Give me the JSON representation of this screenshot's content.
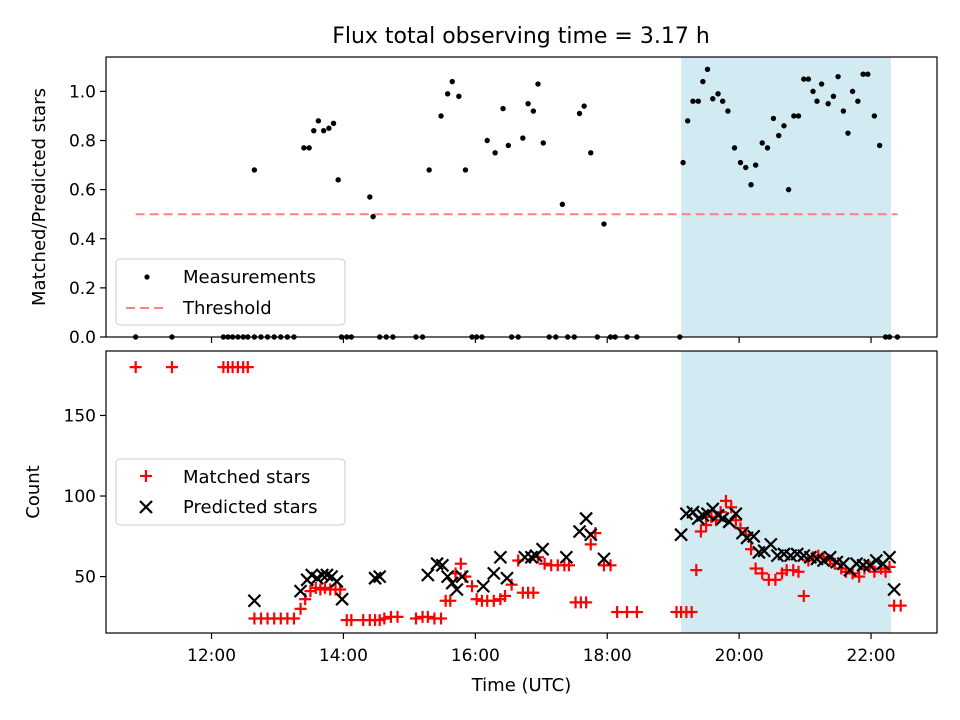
{
  "title": "Flux total observing time = 3.17 h",
  "chart_data": [
    {
      "type": "scatter",
      "ylabel": "Matched/Predicted stars",
      "xlim": [
        10.4,
        23.0
      ],
      "ylim": [
        0,
        1.14
      ],
      "yticks": [
        0.0,
        0.2,
        0.4,
        0.6,
        0.8,
        1.0
      ],
      "ytick_labels": [
        "0.0",
        "0.2",
        "0.4",
        "0.6",
        "0.8",
        "1.0"
      ],
      "shaded_span": [
        19.12,
        22.3
      ],
      "shade_color": "#add8e6",
      "threshold": {
        "value": 0.5,
        "x_range": [
          10.85,
          22.4
        ],
        "color": "#ff8080"
      },
      "legend": {
        "position": "lower-left",
        "items": [
          {
            "label": "Measurements"
          },
          {
            "label": "Threshold"
          }
        ]
      },
      "series": [
        {
          "name": "Measurements",
          "marker": "dot",
          "color": "#000000",
          "x": [
            10.85,
            11.4,
            12.18,
            12.25,
            12.32,
            12.4,
            12.48,
            12.55,
            12.65,
            12.75,
            12.85,
            12.95,
            13.05,
            13.15,
            13.25,
            12.65,
            13.4,
            13.48,
            13.55,
            13.62,
            13.7,
            13.78,
            13.85,
            13.92,
            13.97,
            14.05,
            14.12,
            14.4,
            14.45,
            14.55,
            14.65,
            14.75,
            15.1,
            15.2,
            15.3,
            15.48,
            15.58,
            15.65,
            15.75,
            15.85,
            15.95,
            16.02,
            16.1,
            16.18,
            16.3,
            16.42,
            16.5,
            16.55,
            16.65,
            16.72,
            16.8,
            16.88,
            16.95,
            17.03,
            17.12,
            17.22,
            17.32,
            17.4,
            17.5,
            17.58,
            17.65,
            17.75,
            17.85,
            17.95,
            18.05,
            18.12,
            18.3,
            18.45,
            19.1,
            19.15,
            19.22,
            19.3,
            19.38,
            19.45,
            19.52,
            19.6,
            19.68,
            19.75,
            19.83,
            19.93,
            20.02,
            20.1,
            20.18,
            20.25,
            20.35,
            20.43,
            20.52,
            20.6,
            20.68,
            20.75,
            20.83,
            20.9,
            20.98,
            21.05,
            21.12,
            21.18,
            21.25,
            21.35,
            21.43,
            21.5,
            21.58,
            21.65,
            21.72,
            21.8,
            21.88,
            21.95,
            22.05,
            22.13,
            22.22,
            22.28,
            22.4
          ],
          "y": [
            0.0,
            0.0,
            0.0,
            0.0,
            0.0,
            0.0,
            0.0,
            0.0,
            0.0,
            0.0,
            0.0,
            0.0,
            0.0,
            0.0,
            0.0,
            0.68,
            0.77,
            0.77,
            0.84,
            0.88,
            0.84,
            0.85,
            0.87,
            0.64,
            0.0,
            0.0,
            0.0,
            0.57,
            0.49,
            0.0,
            0.0,
            0.0,
            0.0,
            0.0,
            0.68,
            0.9,
            0.99,
            1.04,
            0.98,
            0.68,
            0.0,
            0.0,
            0.0,
            0.8,
            0.75,
            0.93,
            0.78,
            0.0,
            0.0,
            0.81,
            0.95,
            0.92,
            1.03,
            0.79,
            0.0,
            0.0,
            0.54,
            0.0,
            0.0,
            0.91,
            0.94,
            0.75,
            0.0,
            0.46,
            0.0,
            0.0,
            0.0,
            0.0,
            0.0,
            0.71,
            0.88,
            0.96,
            0.96,
            1.04,
            1.09,
            0.97,
            0.99,
            0.96,
            0.92,
            0.77,
            0.71,
            0.69,
            0.62,
            0.7,
            0.79,
            0.77,
            0.89,
            0.82,
            0.86,
            0.6,
            0.9,
            0.9,
            1.05,
            1.05,
            1.0,
            0.96,
            1.03,
            0.95,
            0.98,
            1.06,
            0.92,
            0.83,
            1.0,
            0.96,
            1.07,
            1.07,
            0.9,
            0.78,
            0.0,
            0.0,
            0.0
          ]
        }
      ]
    },
    {
      "type": "scatter",
      "ylabel": "Count",
      "xlabel": "Time (UTC)",
      "xlim": [
        10.4,
        23.0
      ],
      "ylim": [
        15,
        190
      ],
      "yticks": [
        50,
        100,
        150
      ],
      "ytick_labels": [
        "50",
        "100",
        "150"
      ],
      "xticks": [
        12,
        14,
        16,
        18,
        20,
        22
      ],
      "xtick_labels": [
        "12:00",
        "14:00",
        "16:00",
        "18:00",
        "20:00",
        "22:00"
      ],
      "shaded_span": [
        19.12,
        22.3
      ],
      "shade_color": "#add8e6",
      "legend": {
        "position": "center-left",
        "items": [
          {
            "label": "Matched stars"
          },
          {
            "label": "Predicted stars"
          }
        ]
      },
      "series": [
        {
          "name": "Matched stars",
          "marker": "plus",
          "color": "#ff0000",
          "x": [
            10.85,
            11.4,
            12.18,
            12.25,
            12.32,
            12.4,
            12.48,
            12.55,
            12.65,
            12.75,
            12.85,
            12.95,
            13.05,
            13.15,
            13.25,
            13.35,
            13.42,
            13.5,
            13.58,
            13.65,
            13.72,
            13.8,
            13.88,
            13.95,
            14.05,
            14.12,
            14.3,
            14.4,
            14.48,
            14.55,
            14.62,
            14.72,
            14.82,
            15.1,
            15.2,
            15.28,
            15.38,
            15.48,
            15.55,
            15.62,
            15.7,
            15.78,
            15.85,
            15.95,
            16.02,
            16.1,
            16.18,
            16.28,
            16.38,
            16.45,
            16.55,
            16.65,
            16.72,
            16.8,
            16.88,
            16.95,
            17.05,
            17.15,
            17.25,
            17.35,
            17.42,
            17.52,
            17.6,
            17.68,
            17.75,
            17.82,
            17.95,
            18.05,
            18.15,
            18.3,
            18.45,
            19.05,
            19.12,
            19.2,
            19.28,
            19.35,
            19.42,
            19.5,
            19.58,
            19.65,
            19.72,
            19.8,
            19.88,
            19.95,
            20.02,
            20.1,
            20.18,
            20.25,
            20.35,
            20.45,
            20.55,
            20.65,
            20.72,
            20.82,
            20.9,
            20.98,
            21.05,
            21.12,
            21.2,
            21.28,
            21.38,
            21.45,
            21.55,
            21.62,
            21.72,
            21.82,
            21.9,
            21.98,
            22.05,
            22.15,
            22.22,
            22.28,
            22.35,
            22.45
          ],
          "y": [
            180,
            180,
            180,
            180,
            180,
            180,
            180,
            180,
            24,
            24,
            24,
            24,
            24,
            24,
            24,
            30,
            36,
            41,
            43,
            42,
            43,
            42,
            42,
            42,
            23,
            23,
            23,
            23,
            23,
            23,
            24,
            25,
            25,
            24,
            25,
            25,
            24,
            24,
            35,
            35,
            52,
            58,
            50,
            44,
            36,
            35,
            35,
            35,
            36,
            38,
            45,
            60,
            40,
            40,
            40,
            62,
            58,
            57,
            57,
            57,
            57,
            34,
            34,
            34,
            70,
            77,
            57,
            57,
            28,
            28,
            28,
            28,
            28,
            28,
            28,
            54,
            78,
            82,
            87,
            85,
            90,
            97,
            93,
            85,
            80,
            76,
            67,
            55,
            52,
            48,
            48,
            52,
            54,
            54,
            53,
            38,
            60,
            62,
            63,
            62,
            60,
            58,
            55,
            53,
            52,
            50,
            55,
            56,
            53,
            55,
            53,
            56,
            32,
            32
          ],
          "x_note": ""
        },
        {
          "name": "Predicted stars",
          "marker": "x",
          "color": "#000000",
          "x": [
            12.65,
            13.35,
            13.45,
            13.52,
            13.6,
            13.68,
            13.75,
            13.82,
            13.9,
            13.98,
            14.48,
            14.55,
            15.28,
            15.42,
            15.5,
            15.58,
            15.65,
            15.72,
            15.8,
            16.12,
            16.28,
            16.38,
            16.48,
            16.75,
            16.85,
            16.92,
            17.02,
            17.38,
            17.58,
            17.68,
            17.75,
            17.95,
            19.12,
            19.2,
            19.3,
            19.38,
            19.45,
            19.52,
            19.6,
            19.68,
            19.75,
            19.85,
            19.95,
            20.05,
            20.12,
            20.22,
            20.3,
            20.38,
            20.48,
            20.58,
            20.68,
            20.78,
            20.88,
            20.98,
            21.08,
            21.18,
            21.28,
            21.38,
            21.48,
            21.58,
            21.68,
            21.78,
            21.88,
            21.98,
            22.08,
            22.18,
            22.28,
            22.35
          ],
          "y": [
            35,
            41,
            48,
            51,
            49,
            51,
            51,
            50,
            47,
            36,
            49,
            50,
            51,
            58,
            57,
            50,
            46,
            42,
            50,
            44,
            52,
            62,
            49,
            62,
            62,
            63,
            67,
            62,
            78,
            86,
            76,
            61,
            76,
            89,
            90,
            86,
            88,
            89,
            92,
            88,
            86,
            84,
            89,
            77,
            74,
            75,
            65,
            66,
            70,
            63,
            64,
            63,
            64,
            63,
            62,
            61,
            60,
            62,
            59,
            58,
            54,
            58,
            57,
            57,
            60,
            58,
            62,
            42
          ],
          "x_note": ""
        }
      ]
    }
  ]
}
